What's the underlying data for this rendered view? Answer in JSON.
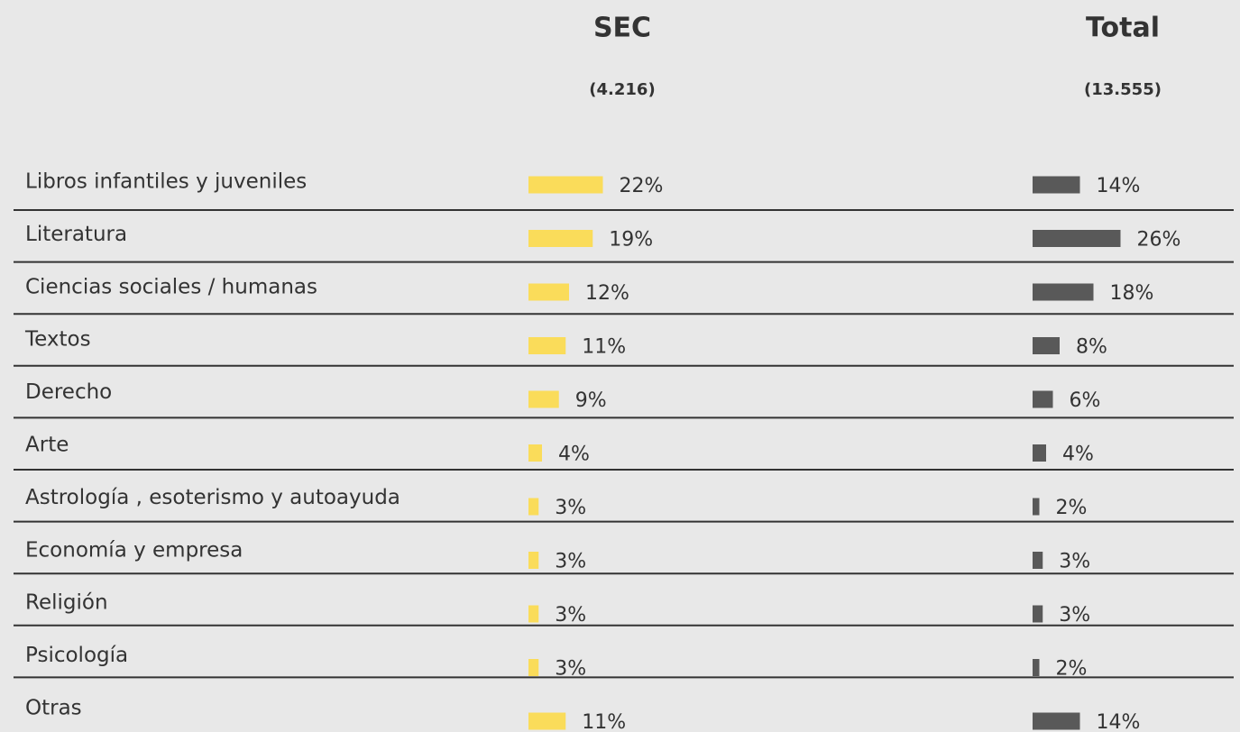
{
  "chart_data": {
    "type": "bar",
    "orientation": "horizontal",
    "categories": [
      "Libros infantiles y juveniles",
      "Literatura",
      "Ciencias sociales / humanas",
      "Textos",
      "Derecho",
      "Arte",
      "Astrología , esoterismo y autoayuda",
      "Economía y empresa",
      "Religión",
      "Psicología",
      "Otras"
    ],
    "series": [
      {
        "name": "SEC",
        "count_label": "(4.216)",
        "color": "#fadc5a",
        "values": [
          22,
          19,
          12,
          11,
          9,
          4,
          3,
          3,
          3,
          3,
          11
        ],
        "value_labels": [
          "22%",
          "19%",
          "12%",
          "11%",
          "9%",
          "4%",
          "3%",
          "3%",
          "3%",
          "3%",
          "11%"
        ]
      },
      {
        "name": "Total",
        "count_label": "(13.555)",
        "color": "#595959",
        "values": [
          14,
          26,
          18,
          8,
          6,
          4,
          2,
          3,
          3,
          2,
          14
        ],
        "value_labels": [
          "14%",
          "26%",
          "18%",
          "8%",
          "6%",
          "4%",
          "2%",
          "3%",
          "3%",
          "2%",
          "14%"
        ]
      }
    ]
  }
}
